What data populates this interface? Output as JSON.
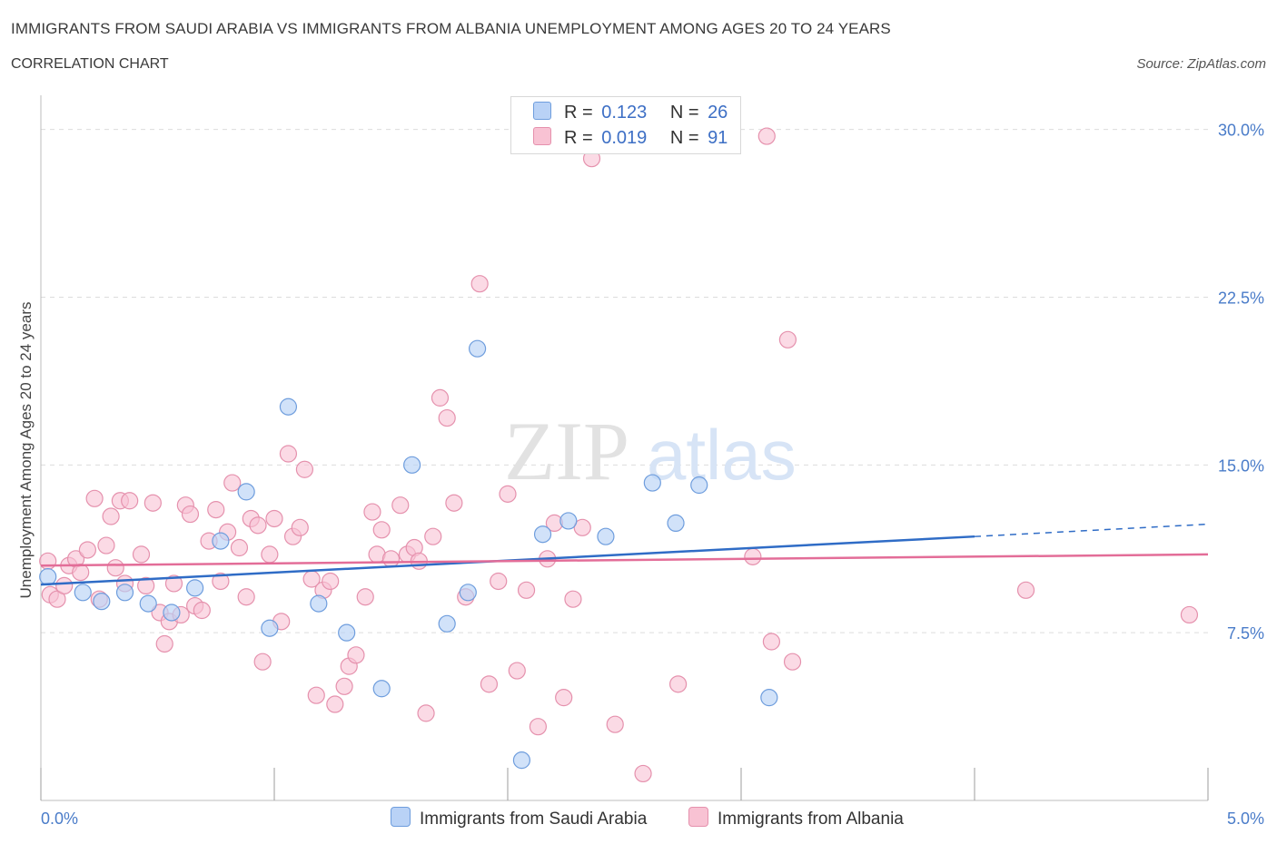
{
  "header": {
    "title": "IMMIGRANTS FROM SAUDI ARABIA VS IMMIGRANTS FROM ALBANIA UNEMPLOYMENT AMONG AGES 20 TO 24 YEARS",
    "subtitle": "CORRELATION CHART",
    "source": "Source: ZipAtlas.com"
  },
  "watermark": {
    "zip": "ZIP",
    "atlas": "atlas"
  },
  "legend": {
    "r_label": "R =",
    "n_label": "N =",
    "rows": [
      {
        "r": "0.123",
        "n": "26"
      },
      {
        "r": "0.019",
        "n": "91"
      }
    ]
  },
  "colors": {
    "saudi_fill": "#b9d2f6",
    "saudi_stroke": "#6e9ddd",
    "saudi_line": "#2f6cc6",
    "albania_fill": "#f8c2d3",
    "albania_stroke": "#e591ad",
    "albania_line": "#e36d98",
    "tick_text": "#4a7cc9",
    "grid": "#dcdcdc"
  },
  "chart_data": {
    "type": "scatter",
    "ylabel": "Unemployment Among Ages 20 to 24 years",
    "x_tick_labels": [
      "0.0%",
      "5.0%"
    ],
    "y_tick_labels": [
      "7.5%",
      "15.0%",
      "22.5%",
      "30.0%"
    ],
    "y_ticks": [
      7.5,
      15.0,
      22.5,
      30.0
    ],
    "xlim": [
      0,
      5
    ],
    "ylim": [
      0,
      30
    ],
    "grid": "horizontal dashed",
    "legend_position": "top-center",
    "series": [
      {
        "name": "Immigrants from Saudi Arabia",
        "trend": {
          "x": [
            0.0,
            4.0
          ],
          "y": [
            9.65,
            11.8
          ],
          "dashed_to": [
            5.0,
            12.35
          ]
        },
        "points": [
          [
            0.03,
            10.0
          ],
          [
            0.18,
            9.3
          ],
          [
            0.26,
            8.9
          ],
          [
            0.36,
            9.3
          ],
          [
            0.46,
            8.8
          ],
          [
            0.56,
            8.4
          ],
          [
            0.66,
            9.5
          ],
          [
            0.77,
            11.6
          ],
          [
            0.88,
            13.8
          ],
          [
            0.98,
            7.7
          ],
          [
            1.06,
            17.6
          ],
          [
            1.19,
            8.8
          ],
          [
            1.31,
            7.5
          ],
          [
            1.46,
            5.0
          ],
          [
            1.59,
            15.0
          ],
          [
            1.74,
            7.9
          ],
          [
            1.83,
            9.3
          ],
          [
            1.87,
            20.2
          ],
          [
            2.06,
            1.8
          ],
          [
            2.15,
            11.9
          ],
          [
            2.26,
            12.5
          ],
          [
            2.42,
            11.8
          ],
          [
            2.62,
            14.2
          ],
          [
            2.72,
            12.4
          ],
          [
            2.82,
            14.1
          ],
          [
            3.12,
            4.6
          ]
        ]
      },
      {
        "name": "Immigrants from Albania",
        "trend": {
          "x": [
            0.0,
            5.0
          ],
          "y": [
            10.5,
            11.0
          ]
        },
        "points": [
          [
            0.03,
            10.7
          ],
          [
            0.04,
            9.2
          ],
          [
            0.07,
            9.0
          ],
          [
            0.1,
            9.6
          ],
          [
            0.12,
            10.5
          ],
          [
            0.15,
            10.8
          ],
          [
            0.17,
            10.2
          ],
          [
            0.2,
            11.2
          ],
          [
            0.23,
            13.5
          ],
          [
            0.25,
            9.0
          ],
          [
            0.28,
            11.4
          ],
          [
            0.3,
            12.7
          ],
          [
            0.32,
            10.4
          ],
          [
            0.34,
            13.4
          ],
          [
            0.36,
            9.7
          ],
          [
            0.38,
            13.4
          ],
          [
            0.43,
            11.0
          ],
          [
            0.45,
            9.6
          ],
          [
            0.48,
            13.3
          ],
          [
            0.51,
            8.4
          ],
          [
            0.53,
            7.0
          ],
          [
            0.55,
            8.0
          ],
          [
            0.57,
            9.7
          ],
          [
            0.6,
            8.3
          ],
          [
            0.62,
            13.2
          ],
          [
            0.64,
            12.8
          ],
          [
            0.66,
            8.7
          ],
          [
            0.69,
            8.5
          ],
          [
            0.72,
            11.6
          ],
          [
            0.75,
            13.0
          ],
          [
            0.77,
            9.8
          ],
          [
            0.8,
            12.0
          ],
          [
            0.82,
            14.2
          ],
          [
            0.85,
            11.3
          ],
          [
            0.88,
            9.1
          ],
          [
            0.9,
            12.6
          ],
          [
            0.93,
            12.3
          ],
          [
            0.95,
            6.2
          ],
          [
            0.98,
            11.0
          ],
          [
            1.0,
            12.6
          ],
          [
            1.03,
            8.0
          ],
          [
            1.06,
            15.5
          ],
          [
            1.08,
            11.8
          ],
          [
            1.11,
            12.2
          ],
          [
            1.13,
            14.8
          ],
          [
            1.16,
            9.9
          ],
          [
            1.18,
            4.7
          ],
          [
            1.21,
            9.4
          ],
          [
            1.24,
            9.8
          ],
          [
            1.26,
            4.3
          ],
          [
            1.3,
            5.1
          ],
          [
            1.32,
            6.0
          ],
          [
            1.35,
            6.5
          ],
          [
            1.39,
            9.1
          ],
          [
            1.42,
            12.9
          ],
          [
            1.44,
            11.0
          ],
          [
            1.46,
            12.1
          ],
          [
            1.5,
            10.8
          ],
          [
            1.54,
            13.2
          ],
          [
            1.57,
            11.0
          ],
          [
            1.6,
            11.3
          ],
          [
            1.62,
            10.7
          ],
          [
            1.65,
            3.9
          ],
          [
            1.68,
            11.8
          ],
          [
            1.71,
            18.0
          ],
          [
            1.74,
            17.1
          ],
          [
            1.77,
            13.3
          ],
          [
            1.82,
            9.1
          ],
          [
            1.88,
            23.1
          ],
          [
            1.92,
            5.2
          ],
          [
            1.96,
            9.8
          ],
          [
            2.0,
            13.7
          ],
          [
            2.04,
            5.8
          ],
          [
            2.08,
            9.4
          ],
          [
            2.13,
            3.3
          ],
          [
            2.17,
            10.8
          ],
          [
            2.2,
            12.4
          ],
          [
            2.24,
            4.6
          ],
          [
            2.28,
            9.0
          ],
          [
            2.32,
            12.2
          ],
          [
            2.36,
            28.7
          ],
          [
            2.46,
            3.4
          ],
          [
            2.58,
            1.2
          ],
          [
            2.73,
            5.2
          ],
          [
            3.05,
            10.9
          ],
          [
            3.11,
            29.7
          ],
          [
            3.13,
            7.1
          ],
          [
            3.2,
            20.6
          ],
          [
            3.22,
            6.2
          ],
          [
            4.22,
            9.4
          ],
          [
            4.92,
            8.3
          ]
        ]
      }
    ]
  },
  "bottom_legend": [
    {
      "label": "Immigrants from Saudi Arabia"
    },
    {
      "label": "Immigrants from Albania"
    }
  ]
}
